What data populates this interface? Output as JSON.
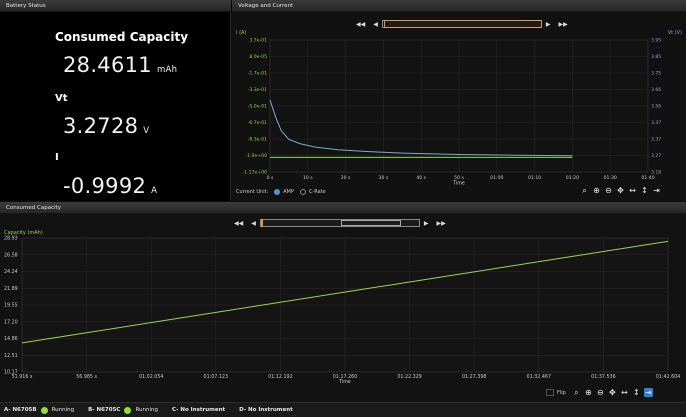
{
  "battery": {
    "header": "Battery Status",
    "consumed_label": "Consumed Capacity",
    "consumed_value": "28.4611",
    "consumed_unit": "mAh",
    "vt_label": "Vt",
    "vt_value": "3.2728",
    "vt_unit": "V",
    "i_label": "I",
    "i_value": "-0.9992",
    "i_unit": "A"
  },
  "vc": {
    "header": "Voltage and Current",
    "current_unit_label": "Current Unit:",
    "amp_label": "AMP",
    "crate_label": "C-Rate",
    "nav": {
      "first": "◀◀",
      "prev": "◀",
      "next": "▶",
      "last": "▶▶"
    }
  },
  "cc": {
    "header": "Consumed Capacity",
    "flip_label": "Flip"
  },
  "status": {
    "a_label": "A- N6705B",
    "a_state": "Running",
    "b_label": "B- N6705C",
    "b_state": "Running",
    "c_label": "C- No Instrument",
    "d_label": "D- No Instrument"
  },
  "chart_data": [
    {
      "type": "line",
      "xlabel": "Time",
      "y_left_label": "I (A)",
      "y_right_label": "Vt (V)",
      "x_ticks": [
        "0 s",
        "10 s",
        "20 s",
        "30 s",
        "40 s",
        "50 s",
        "01:00",
        "01:10",
        "01:20",
        "01:30",
        "01:40"
      ],
      "y_left_ticks": [
        "3.7e-01",
        "8.0e-05",
        "-1.7e-01",
        "-3.3e-01",
        "-5.0e-01",
        "-6.7e-01",
        "-8.3e-01",
        "-1.0e+00",
        "-1.17e+00"
      ],
      "y_right_ticks": [
        "3.95",
        "3.85",
        "3.75",
        "3.66",
        "3.56",
        "3.47",
        "3.37",
        "3.27",
        "3.18"
      ],
      "ylim_current": [
        -1.17,
        0.37
      ],
      "ylim_voltage": [
        3.18,
        3.95
      ],
      "x_range_s": [
        0,
        100
      ],
      "series": [
        {
          "name": "I (A)",
          "color": "#8ed84a",
          "x": [
            0,
            1,
            3,
            10,
            20,
            40,
            60,
            80
          ],
          "y": [
            -1.0,
            -1.0,
            -1.0,
            -1.0,
            -1.0,
            -1.0,
            -1.0,
            -1.0
          ]
        },
        {
          "name": "Vt (V)",
          "color": "#7fa7d8",
          "x": [
            0,
            1.5,
            3,
            5,
            8,
            12,
            18,
            25,
            35,
            50,
            65,
            80
          ],
          "y": [
            3.6,
            3.5,
            3.42,
            3.37,
            3.345,
            3.325,
            3.31,
            3.3,
            3.29,
            3.282,
            3.278,
            3.275
          ]
        }
      ]
    },
    {
      "type": "line",
      "xlabel": "Time",
      "ylabel": "Capacity (mAh)",
      "x_ticks": [
        "51.916 s",
        "56.985 s",
        "01:02.054",
        "01:07.123",
        "01:12.192",
        "01:17.260",
        "01:22.329",
        "01:27.398",
        "01:32.467",
        "01:37.536",
        "01:42.604"
      ],
      "y_ticks": [
        "28.93",
        "26.58",
        "24.24",
        "21.89",
        "19.55",
        "17.20",
        "14.86",
        "12.51",
        "10.17"
      ],
      "ylim": [
        10.17,
        28.93
      ],
      "x_range_s": [
        51.916,
        102.604
      ],
      "series": [
        {
          "name": "Capacity",
          "color": "#9ad94a",
          "x": [
            51.916,
            102.604
          ],
          "y": [
            14.25,
            28.46
          ]
        }
      ]
    }
  ]
}
